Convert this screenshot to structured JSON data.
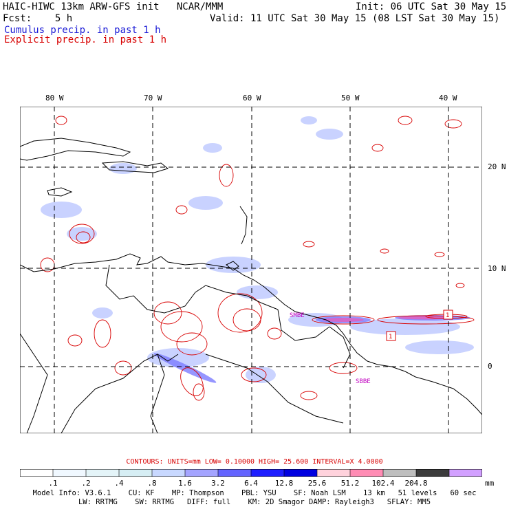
{
  "header": {
    "title": "HAIC-HIWC 13km ARW-GFS init   NCAR/MMM",
    "init": "Init: 06 UTC Sat 30 May 15",
    "fcst": "Fcst:    5 h",
    "valid": "Valid: 11 UTC Sat 30 May 15 (08 LST Sat 30 May 15)",
    "cumulus": "Cumulus precip. in past 1 h",
    "explicit": "Explicit precip. in past 1 h"
  },
  "map": {
    "lon_labels": [
      "80 W",
      "70 W",
      "60 W",
      "50 W",
      "40 W"
    ],
    "lat_labels": [
      "20 N",
      "10 N",
      "0"
    ],
    "annotations": [
      "SMBE",
      "SBBE",
      "1",
      "1"
    ]
  },
  "colorbar": {
    "labels": [
      ".1",
      ".2",
      ".4",
      ".8",
      "1.6",
      "3.2",
      "6.4",
      "12.8",
      "25.6",
      "51.2",
      "102.4",
      "204.8"
    ],
    "units": "mm",
    "colors": [
      "#ffffff",
      "#f0f8ff",
      "#e4f4f8",
      "#d6eef4",
      "#c8d8ff",
      "#a4a4ff",
      "#6464ff",
      "#1e1eff",
      "#0000e0",
      "#ffd2dc",
      "#ff8cb4",
      "#bebebe",
      "#3c3c3c",
      "#d2a0ff"
    ]
  },
  "contours": "CONTOURS:  UNITS=mm  LOW= 0.10000     HIGH=  25.600     INTERVAL=X  4.0000",
  "model_info": {
    "line1": "Model Info: V3.6.1    CU: KF    MP: Thompson    PBL: YSU    SF: Noah LSM    13 km   51 levels   60 sec",
    "line2": "LW: RRTMG    SW: RRTMG   DIFF: full    KM: 2D Smagor DAMP: Rayleigh3   SFLAY: MM5"
  }
}
